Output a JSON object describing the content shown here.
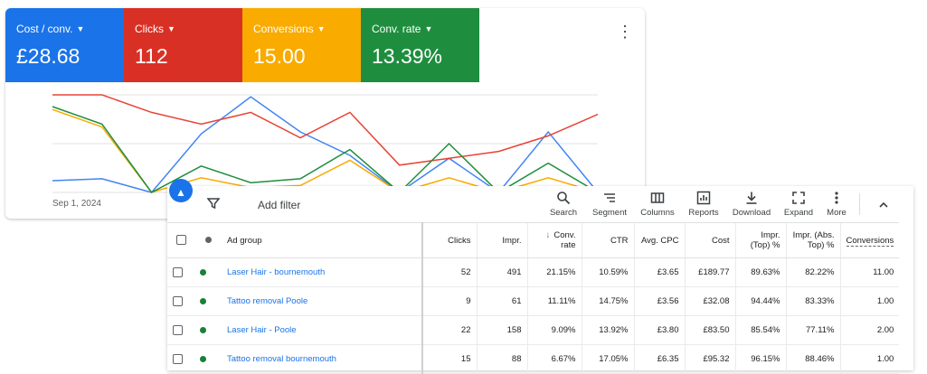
{
  "metrics": [
    {
      "label": "Cost / conv.",
      "value": "£28.68",
      "color": "#1a73e8"
    },
    {
      "label": "Clicks",
      "value": "112",
      "color": "#d93025"
    },
    {
      "label": "Conversions",
      "value": "15.00",
      "color": "#f9ab00"
    },
    {
      "label": "Conv. rate",
      "value": "13.39%",
      "color": "#1e8e3e"
    }
  ],
  "chart": {
    "date_label": "Sep 1, 2024",
    "series": [
      {
        "name": "Cost / conv.",
        "color": "#4285f4",
        "values": [
          0.12,
          0.14,
          0.0,
          0.6,
          0.98,
          0.62,
          0.38,
          0.0,
          0.35,
          0.0,
          0.62,
          0.0
        ]
      },
      {
        "name": "Clicks",
        "color": "#e84335",
        "values": [
          1.0,
          1.0,
          0.82,
          0.7,
          0.82,
          0.56,
          0.82,
          0.28,
          0.35,
          0.42,
          0.58,
          0.8
        ]
      },
      {
        "name": "Conversions",
        "color": "#f9ab00",
        "values": [
          0.85,
          0.67,
          0.0,
          0.15,
          0.05,
          0.07,
          0.33,
          0.0,
          0.15,
          0.0,
          0.15,
          0.0
        ]
      },
      {
        "name": "Conv. rate",
        "color": "#1e8e3e",
        "values": [
          0.88,
          0.7,
          0.0,
          0.27,
          0.1,
          0.14,
          0.44,
          0.0,
          0.5,
          0.0,
          0.3,
          0.0
        ]
      }
    ]
  },
  "toolbar": {
    "add_filter": "Add filter",
    "tools": [
      {
        "label": "Search",
        "icon": "search-icon"
      },
      {
        "label": "Segment",
        "icon": "segment-icon"
      },
      {
        "label": "Columns",
        "icon": "columns-icon"
      },
      {
        "label": "Reports",
        "icon": "reports-icon"
      },
      {
        "label": "Download",
        "icon": "download-icon"
      },
      {
        "label": "Expand",
        "icon": "expand-icon"
      },
      {
        "label": "More",
        "icon": "more-icon"
      }
    ]
  },
  "table": {
    "headers": {
      "ad_group": "Ad group",
      "clicks": "Clicks",
      "impr": "Impr.",
      "conv_rate": "Conv. rate",
      "ctr": "CTR",
      "avg_cpc": "Avg. CPC",
      "cost": "Cost",
      "impr_top": "Impr. (Top) %",
      "impr_abs_top": "Impr. (Abs. Top) %",
      "conversions": "Conversions"
    },
    "rows": [
      {
        "ad_group": "Laser Hair - bournemouth",
        "clicks": "52",
        "impr": "491",
        "conv_rate": "21.15%",
        "ctr": "10.59%",
        "avg_cpc": "£3.65",
        "cost": "£189.77",
        "impr_top": "89.63%",
        "impr_abs_top": "82.22%",
        "conversions": "11.00"
      },
      {
        "ad_group": "Tattoo removal Poole",
        "clicks": "9",
        "impr": "61",
        "conv_rate": "11.11%",
        "ctr": "14.75%",
        "avg_cpc": "£3.56",
        "cost": "£32.08",
        "impr_top": "94.44%",
        "impr_abs_top": "83.33%",
        "conversions": "1.00"
      },
      {
        "ad_group": "Laser Hair - Poole",
        "clicks": "22",
        "impr": "158",
        "conv_rate": "9.09%",
        "ctr": "13.92%",
        "avg_cpc": "£3.80",
        "cost": "£83.50",
        "impr_top": "85.54%",
        "impr_abs_top": "77.11%",
        "conversions": "2.00"
      },
      {
        "ad_group": "Tattoo removal bournemouth",
        "clicks": "15",
        "impr": "88",
        "conv_rate": "6.67%",
        "ctr": "17.05%",
        "avg_cpc": "£6.35",
        "cost": "£95.32",
        "impr_top": "96.15%",
        "impr_abs_top": "88.46%",
        "conversions": "1.00"
      }
    ]
  }
}
